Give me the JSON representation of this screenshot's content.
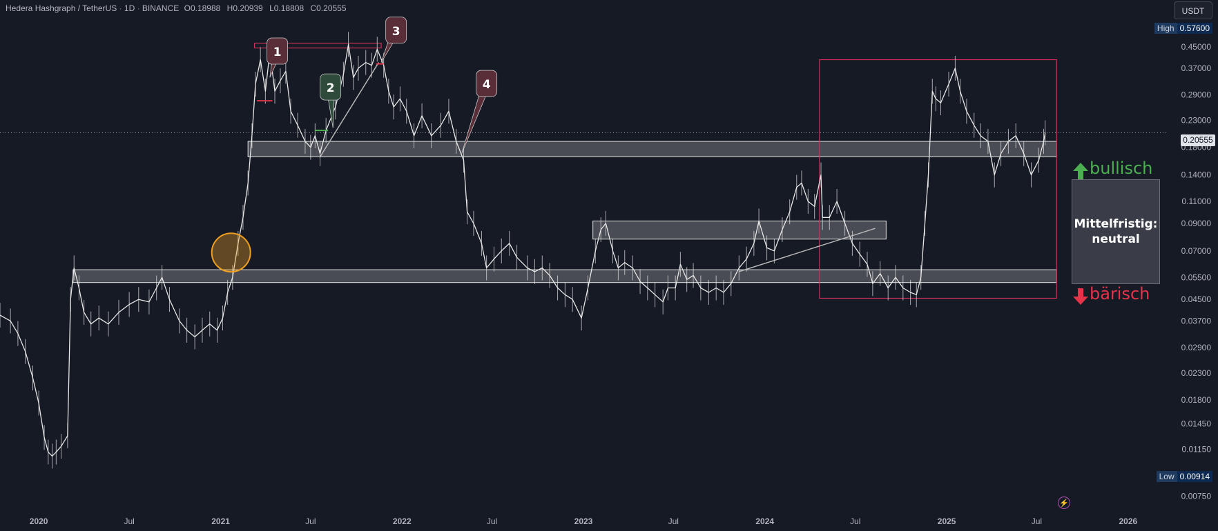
{
  "header": {
    "symbol": "Hedera Hashgraph / TetherUS",
    "interval": "1D",
    "exchange": "BINANCE",
    "open": "O0.18988",
    "high": "H0.20939",
    "low": "L0.18808",
    "close": "C0.20555",
    "currency_button": "USDT",
    "separator": "·"
  },
  "price_tags": {
    "high_label": "High",
    "high_value": "0.57600",
    "low_label": "Low",
    "low_value": "0.00914",
    "last_price": "0.20555"
  },
  "annotations": {
    "markers": [
      "1",
      "2",
      "3",
      "4"
    ],
    "bull_label": "bullisch",
    "bear_label": "bärisch",
    "box_line1": "Mittelfristig:",
    "box_line2": "neutral"
  },
  "colors": {
    "background": "#161a25",
    "candle": "#e8e8e8",
    "bull": "#4caf50",
    "bear": "#e5334a",
    "zone_fill": "#ffffff",
    "orange_circle": "#f0a020",
    "pink_box": "#d0305a"
  },
  "chart_data": {
    "type": "line",
    "title": "",
    "x_axis": {
      "tick_labels": [
        "2020",
        "Jul",
        "2021",
        "Jul",
        "2022",
        "Jul",
        "2023",
        "Jul",
        "2024",
        "Jul",
        "2025",
        "Jul",
        "2026"
      ],
      "tick_dates": [
        "2020-01-01",
        "2020-07-01",
        "2021-01-01",
        "2021-07-01",
        "2022-01-01",
        "2022-07-01",
        "2023-01-01",
        "2023-07-01",
        "2024-01-01",
        "2024-07-01",
        "2025-01-01",
        "2025-07-01",
        "2026-01-01"
      ],
      "range": [
        "2019-10-15",
        "2026-03-20"
      ]
    },
    "y_axis": {
      "scale": "log",
      "tick_labels": [
        "0.45000",
        "0.37000",
        "0.29000",
        "0.23000",
        "0.18000",
        "0.14000",
        "0.11000",
        "0.09000",
        "0.07000",
        "0.05500",
        "0.04500",
        "0.03700",
        "0.02900",
        "0.02300",
        "0.01800",
        "0.01450",
        "0.01150",
        "0.00750"
      ],
      "tick_values": [
        0.45,
        0.37,
        0.29,
        0.23,
        0.18,
        0.14,
        0.11,
        0.09,
        0.07,
        0.055,
        0.045,
        0.037,
        0.029,
        0.023,
        0.018,
        0.0145,
        0.0115,
        0.0075
      ],
      "range": [
        0.0068,
        0.6
      ]
    },
    "series": [
      {
        "points": [
          [
            "2019-10-15",
            0.039
          ],
          [
            "2019-11-05",
            0.037
          ],
          [
            "2019-11-20",
            0.033
          ],
          [
            "2019-12-05",
            0.028
          ],
          [
            "2019-12-20",
            0.022
          ],
          [
            "2020-01-01",
            0.0175
          ],
          [
            "2020-01-12",
            0.0128
          ],
          [
            "2020-01-20",
            0.0112
          ],
          [
            "2020-01-28",
            0.0108
          ],
          [
            "2020-02-05",
            0.0112
          ],
          [
            "2020-02-15",
            0.0118
          ],
          [
            "2020-02-28",
            0.013
          ],
          [
            "2020-03-05",
            0.045
          ],
          [
            "2020-03-12",
            0.06
          ],
          [
            "2020-03-22",
            0.05
          ],
          [
            "2020-04-01",
            0.04
          ],
          [
            "2020-04-15",
            0.036
          ],
          [
            "2020-05-01",
            0.038
          ],
          [
            "2020-05-20",
            0.036
          ],
          [
            "2020-06-10",
            0.04
          ],
          [
            "2020-07-01",
            0.043
          ],
          [
            "2020-07-20",
            0.045
          ],
          [
            "2020-08-10",
            0.044
          ],
          [
            "2020-08-25",
            0.05
          ],
          [
            "2020-09-05",
            0.055
          ],
          [
            "2020-09-20",
            0.045
          ],
          [
            "2020-10-10",
            0.037
          ],
          [
            "2020-10-25",
            0.034
          ],
          [
            "2020-11-10",
            0.032
          ],
          [
            "2020-11-25",
            0.034
          ],
          [
            "2020-12-10",
            0.036
          ],
          [
            "2020-12-25",
            0.034
          ],
          [
            "2021-01-05",
            0.038
          ],
          [
            "2021-01-15",
            0.048
          ],
          [
            "2021-01-25",
            0.055
          ],
          [
            "2021-02-05",
            0.075
          ],
          [
            "2021-02-15",
            0.095
          ],
          [
            "2021-02-25",
            0.13
          ],
          [
            "2021-03-05",
            0.2
          ],
          [
            "2021-03-12",
            0.32
          ],
          [
            "2021-03-22",
            0.4
          ],
          [
            "2021-04-01",
            0.3
          ],
          [
            "2021-04-10",
            0.43
          ],
          [
            "2021-04-20",
            0.3
          ],
          [
            "2021-05-01",
            0.33
          ],
          [
            "2021-05-12",
            0.36
          ],
          [
            "2021-05-22",
            0.25
          ],
          [
            "2021-06-05",
            0.22
          ],
          [
            "2021-06-20",
            0.19
          ],
          [
            "2021-07-01",
            0.18
          ],
          [
            "2021-07-10",
            0.2
          ],
          [
            "2021-07-20",
            0.17
          ],
          [
            "2021-08-01",
            0.21
          ],
          [
            "2021-08-20",
            0.26
          ],
          [
            "2021-09-05",
            0.35
          ],
          [
            "2021-09-15",
            0.46
          ],
          [
            "2021-09-25",
            0.34
          ],
          [
            "2021-10-05",
            0.37
          ],
          [
            "2021-10-20",
            0.39
          ],
          [
            "2021-11-01",
            0.38
          ],
          [
            "2021-11-12",
            0.44
          ],
          [
            "2021-11-25",
            0.38
          ],
          [
            "2021-12-05",
            0.3
          ],
          [
            "2021-12-15",
            0.26
          ],
          [
            "2021-12-28",
            0.28
          ],
          [
            "2022-01-10",
            0.25
          ],
          [
            "2022-01-25",
            0.2
          ],
          [
            "2022-02-10",
            0.24
          ],
          [
            "2022-03-01",
            0.2
          ],
          [
            "2022-03-20",
            0.22
          ],
          [
            "2022-04-05",
            0.25
          ],
          [
            "2022-04-20",
            0.19
          ],
          [
            "2022-05-05",
            0.16
          ],
          [
            "2022-05-12",
            0.1
          ],
          [
            "2022-05-25",
            0.09
          ],
          [
            "2022-06-10",
            0.075
          ],
          [
            "2022-06-20",
            0.06
          ],
          [
            "2022-07-05",
            0.065
          ],
          [
            "2022-07-20",
            0.07
          ],
          [
            "2022-08-05",
            0.075
          ],
          [
            "2022-08-20",
            0.066
          ],
          [
            "2022-09-10",
            0.06
          ],
          [
            "2022-09-25",
            0.058
          ],
          [
            "2022-10-10",
            0.06
          ],
          [
            "2022-10-25",
            0.056
          ],
          [
            "2022-11-10",
            0.05
          ],
          [
            "2022-11-25",
            0.047
          ],
          [
            "2022-12-10",
            0.045
          ],
          [
            "2022-12-28",
            0.038
          ],
          [
            "2023-01-10",
            0.05
          ],
          [
            "2023-01-25",
            0.07
          ],
          [
            "2023-02-05",
            0.085
          ],
          [
            "2023-02-15",
            0.09
          ],
          [
            "2023-03-01",
            0.07
          ],
          [
            "2023-03-12",
            0.06
          ],
          [
            "2023-03-25",
            0.063
          ],
          [
            "2023-04-10",
            0.06
          ],
          [
            "2023-04-25",
            0.053
          ],
          [
            "2023-05-10",
            0.05
          ],
          [
            "2023-05-25",
            0.047
          ],
          [
            "2023-06-10",
            0.044
          ],
          [
            "2023-06-20",
            0.05
          ],
          [
            "2023-07-05",
            0.05
          ],
          [
            "2023-07-15",
            0.062
          ],
          [
            "2023-07-28",
            0.054
          ],
          [
            "2023-08-10",
            0.056
          ],
          [
            "2023-08-25",
            0.05
          ],
          [
            "2023-09-10",
            0.048
          ],
          [
            "2023-09-25",
            0.05
          ],
          [
            "2023-10-10",
            0.048
          ],
          [
            "2023-10-25",
            0.052
          ],
          [
            "2023-11-10",
            0.06
          ],
          [
            "2023-11-25",
            0.065
          ],
          [
            "2023-12-10",
            0.075
          ],
          [
            "2023-12-20",
            0.092
          ],
          [
            "2024-01-05",
            0.072
          ],
          [
            "2024-01-20",
            0.07
          ],
          [
            "2024-02-05",
            0.085
          ],
          [
            "2024-02-20",
            0.1
          ],
          [
            "2024-03-05",
            0.125
          ],
          [
            "2024-03-15",
            0.13
          ],
          [
            "2024-03-28",
            0.11
          ],
          [
            "2024-04-10",
            0.105
          ],
          [
            "2024-04-23",
            0.14
          ],
          [
            "2024-04-26",
            0.095
          ],
          [
            "2024-05-10",
            0.095
          ],
          [
            "2024-05-25",
            0.11
          ],
          [
            "2024-06-10",
            0.09
          ],
          [
            "2024-06-25",
            0.075
          ],
          [
            "2024-07-10",
            0.068
          ],
          [
            "2024-07-25",
            0.062
          ],
          [
            "2024-08-05",
            0.052
          ],
          [
            "2024-08-20",
            0.057
          ],
          [
            "2024-09-05",
            0.05
          ],
          [
            "2024-09-20",
            0.055
          ],
          [
            "2024-10-05",
            0.05
          ],
          [
            "2024-10-20",
            0.048
          ],
          [
            "2024-11-01",
            0.047
          ],
          [
            "2024-11-10",
            0.055
          ],
          [
            "2024-11-18",
            0.09
          ],
          [
            "2024-11-25",
            0.14
          ],
          [
            "2024-12-03",
            0.3
          ],
          [
            "2024-12-10",
            0.28
          ],
          [
            "2024-12-20",
            0.27
          ],
          [
            "2025-01-05",
            0.32
          ],
          [
            "2025-01-18",
            0.37
          ],
          [
            "2025-01-28",
            0.3
          ],
          [
            "2025-02-10",
            0.25
          ],
          [
            "2025-02-25",
            0.22
          ],
          [
            "2025-03-10",
            0.2
          ],
          [
            "2025-03-25",
            0.19
          ],
          [
            "2025-04-07",
            0.14
          ],
          [
            "2025-04-20",
            0.17
          ],
          [
            "2025-05-05",
            0.19
          ],
          [
            "2025-05-20",
            0.2
          ],
          [
            "2025-06-05",
            0.17
          ],
          [
            "2025-06-20",
            0.14
          ],
          [
            "2025-07-05",
            0.16
          ],
          [
            "2025-07-15",
            0.19
          ],
          [
            "2025-07-18",
            0.20555
          ]
        ]
      }
    ],
    "overlays": {
      "horizontal_zones": [
        {
          "from": "2021-02-25",
          "to": "2025-08-10",
          "low": 0.165,
          "high": 0.19
        },
        {
          "from": "2020-03-10",
          "to": "2025-08-10",
          "low": 0.0525,
          "high": 0.059
        },
        {
          "from": "2023-01-20",
          "to": "2024-09-01",
          "low": 0.078,
          "high": 0.092
        }
      ],
      "rectangles": [
        {
          "from": "2021-03-10",
          "to": "2021-11-20",
          "low": 0.445,
          "high": 0.465
        },
        {
          "from": "2024-04-20",
          "to": "2025-08-10",
          "low": 0.0455,
          "high": 0.4
        }
      ],
      "trendlines": [
        {
          "from": [
            "2021-07-20",
            0.165
          ],
          "to": [
            "2021-11-15",
            0.39
          ]
        },
        {
          "from": [
            "2023-11-10",
            0.058
          ],
          "to": [
            "2024-08-10",
            0.086
          ]
        }
      ],
      "circle": {
        "date": "2021-01-22",
        "value": 0.069
      },
      "short_marks": [
        {
          "from": "2021-03-15",
          "to": "2021-04-15",
          "value": 0.275,
          "color": "#e5334a"
        },
        {
          "from": "2021-07-10",
          "to": "2021-08-05",
          "value": 0.21,
          "color": "#4caf50"
        },
        {
          "from": "2021-11-10",
          "to": "2021-11-25",
          "value": 0.385,
          "color": "#e5334a"
        }
      ],
      "callouts": [
        {
          "label": "1",
          "date": "2021-04-25",
          "value": 0.43,
          "tip_date": "2021-04-10",
          "tip_value": 0.34,
          "color": "#5a2e38"
        },
        {
          "label": "2",
          "date": "2021-08-10",
          "value": 0.31,
          "tip_date": "2021-08-15",
          "tip_value": 0.215,
          "color": "#2e4a3a"
        },
        {
          "label": "3",
          "date": "2021-12-20",
          "value": 0.52,
          "tip_date": "2021-11-20",
          "tip_value": 0.39,
          "color": "#5a2e38"
        },
        {
          "label": "4",
          "date": "2022-06-20",
          "value": 0.32,
          "tip_date": "2022-05-01",
          "tip_value": 0.17,
          "color": "#5a2e38"
        }
      ]
    },
    "high": 0.576,
    "low": 0.00914,
    "last": 0.20555,
    "grid": false,
    "legend": "none"
  }
}
